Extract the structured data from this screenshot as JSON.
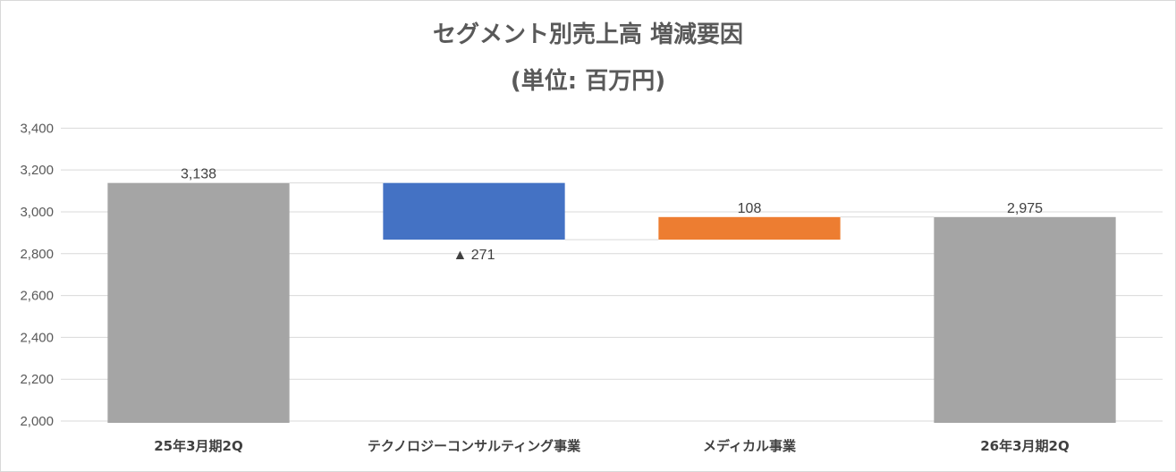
{
  "chart_data": {
    "type": "waterfall",
    "title_line1": "セグメント別売上高 増減要因",
    "title_line2": "(単位: 百万円)",
    "categories": [
      "25年3月期2Q",
      "テクノロジーコンサルティング事業",
      "メディカル事業",
      "26年3月期2Q"
    ],
    "steps": [
      {
        "kind": "total",
        "value": 3138,
        "label": "3,138",
        "color": "#a5a5a5"
      },
      {
        "kind": "decrease",
        "value": -271,
        "label": "▲ 271",
        "color": "#4472c4"
      },
      {
        "kind": "increase",
        "value": 108,
        "label": "108",
        "color": "#ed7d31"
      },
      {
        "kind": "total",
        "value": 2975,
        "label": "2,975",
        "color": "#a5a5a5"
      }
    ],
    "ylim": [
      2000,
      3500
    ],
    "yticks": [
      2000,
      2200,
      2400,
      2600,
      2800,
      3000,
      3200,
      3400
    ],
    "ytick_labels": [
      "2,000",
      "2,200",
      "2,400",
      "2,600",
      "2,800",
      "3,000",
      "3,200",
      "3,400"
    ],
    "grid": true,
    "legend": "none"
  }
}
